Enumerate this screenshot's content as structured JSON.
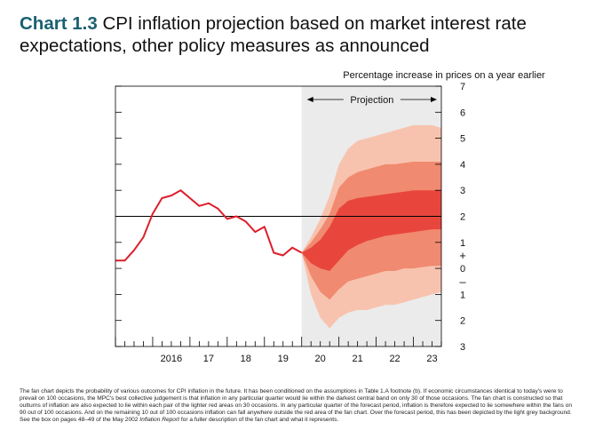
{
  "title": {
    "number": "Chart 1.3",
    "text": "CPI inflation projection based on market interest rate expectations, other policy measures as announced"
  },
  "footnote": {
    "part1": "The fan chart depicts the probability of various outcomes for CPI inflation in the future. It has been conditioned on the assumptions in Table 1.A footnote (b). If economic circumstances identical to today's were to prevail on 100 occasions, the MPC's best collective judgement is that inflation in any particular quarter would lie within the darkest central band on only 30 of those occasions. The fan chart is constructed so that outturns of inflation are also expected to lie within each pair of the lighter red areas on 30 occasions. In any particular quarter of the forecast period, inflation is therefore expected to lie somewhere within the fans on 90 out of 100 occasions. And on the remaining 10 out of 100 occasions inflation can fall anywhere outside the red area of the fan chart. Over the forecast period, this has been depicted by the light grey background. See the box on pages 48–49 of the May 2002 ",
    "italic": "Inflation Report",
    "part2": " for a fuller description of the fan chart and what it represents."
  },
  "colors": {
    "history_line": "#dd1f2b",
    "band_central": "#e8463d",
    "band_mid": "#f08a70",
    "band_outer": "#f8c3ae",
    "projection_bg": "#ebebeb",
    "target_line": "#000000",
    "title_number": "#1a6170"
  },
  "chart_data": {
    "type": "area",
    "title": "Percentage increase in prices on a year earlier",
    "projection_label": "Projection",
    "ylim": [
      -3,
      7
    ],
    "x_range": [
      2015.0,
      2023.75
    ],
    "x_tick_labels": [
      {
        "label": "2016",
        "x": 2016.5
      },
      {
        "label": "17",
        "x": 2017.5
      },
      {
        "label": "18",
        "x": 2018.5
      },
      {
        "label": "19",
        "x": 2019.5
      },
      {
        "label": "20",
        "x": 2020.5
      },
      {
        "label": "21",
        "x": 2021.5
      },
      {
        "label": "22",
        "x": 2022.5
      },
      {
        "label": "23",
        "x": 2023.5
      }
    ],
    "y_tick_labels": [
      {
        "label": "7",
        "y": 7
      },
      {
        "label": "6",
        "y": 6
      },
      {
        "label": "5",
        "y": 5
      },
      {
        "label": "4",
        "y": 4
      },
      {
        "label": "3",
        "y": 3
      },
      {
        "label": "2",
        "y": 2
      },
      {
        "label": "1",
        "y": 1
      },
      {
        "label": "+",
        "y": 0.5
      },
      {
        "label": "0",
        "y": 0
      },
      {
        "label": "–",
        "y": -0.5
      },
      {
        "label": "1",
        "y": -1
      },
      {
        "label": "2",
        "y": -2
      },
      {
        "label": "3",
        "y": -3
      }
    ],
    "target": 2.0,
    "projection_start": 2020.0,
    "history": {
      "name": "CPI inflation",
      "x": [
        2015.0,
        2015.25,
        2015.5,
        2015.75,
        2016.0,
        2016.25,
        2016.5,
        2016.75,
        2017.0,
        2017.25,
        2017.5,
        2017.75,
        2018.0,
        2018.25,
        2018.5,
        2018.75,
        2019.0,
        2019.25,
        2019.5,
        2019.75,
        2020.0
      ],
      "y": [
        0.3,
        0.3,
        0.7,
        1.2,
        2.1,
        2.7,
        2.8,
        3.0,
        2.7,
        2.4,
        2.5,
        2.3,
        1.9,
        2.0,
        1.8,
        1.4,
        1.6,
        0.6,
        0.5,
        0.8,
        0.6
      ]
    },
    "fan": {
      "x": [
        2020.0,
        2020.25,
        2020.5,
        2020.75,
        2021.0,
        2021.25,
        2021.5,
        2021.75,
        2022.0,
        2022.25,
        2022.5,
        2022.75,
        2023.0,
        2023.25,
        2023.5,
        2023.75
      ],
      "bands": [
        {
          "name": "outer",
          "lower": [
            0.6,
            -1.0,
            -1.9,
            -2.3,
            -1.9,
            -1.7,
            -1.6,
            -1.6,
            -1.5,
            -1.4,
            -1.4,
            -1.3,
            -1.2,
            -1.1,
            -1.0,
            -0.9
          ],
          "upper": [
            0.6,
            1.2,
            1.9,
            2.8,
            4.0,
            4.6,
            4.9,
            5.0,
            5.1,
            5.2,
            5.3,
            5.4,
            5.5,
            5.5,
            5.5,
            5.4
          ]
        },
        {
          "name": "mid",
          "lower": [
            0.6,
            -0.3,
            -0.9,
            -1.2,
            -0.8,
            -0.5,
            -0.4,
            -0.3,
            -0.2,
            -0.1,
            -0.1,
            0.0,
            0.0,
            0.05,
            0.1,
            0.1
          ],
          "upper": [
            0.6,
            1.0,
            1.5,
            2.1,
            3.1,
            3.5,
            3.7,
            3.8,
            3.9,
            4.0,
            4.0,
            4.05,
            4.1,
            4.1,
            4.1,
            4.1
          ]
        },
        {
          "name": "central",
          "lower": [
            0.6,
            0.2,
            0.0,
            -0.1,
            0.3,
            0.7,
            0.9,
            1.05,
            1.15,
            1.25,
            1.3,
            1.35,
            1.4,
            1.45,
            1.5,
            1.5
          ],
          "upper": [
            0.6,
            0.8,
            1.1,
            1.6,
            2.3,
            2.6,
            2.7,
            2.75,
            2.8,
            2.85,
            2.9,
            2.95,
            3.0,
            3.0,
            3.0,
            3.0
          ]
        }
      ]
    }
  }
}
